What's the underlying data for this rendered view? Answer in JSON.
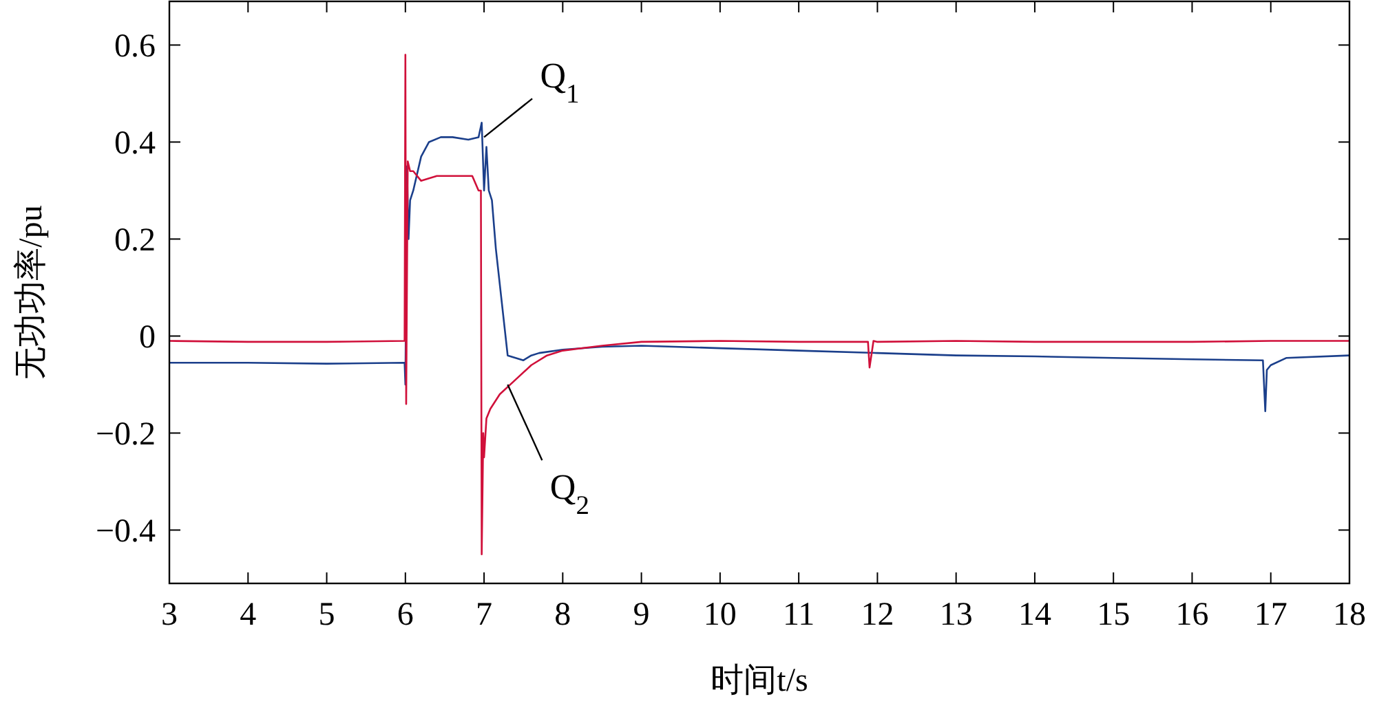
{
  "chart_data": {
    "type": "line",
    "xlabel": "时间t/s",
    "ylabel": "无功功率/pu",
    "xlim": [
      3,
      18
    ],
    "ylim": [
      -0.51,
      0.69
    ],
    "xticks": [
      3,
      4,
      5,
      6,
      7,
      8,
      9,
      10,
      11,
      12,
      13,
      14,
      15,
      16,
      17,
      18
    ],
    "yticks": [
      {
        "value": -0.4,
        "label": "−0.4"
      },
      {
        "value": -0.2,
        "label": "−0.2"
      },
      0,
      0.2,
      0.4,
      0.6
    ],
    "grid": false,
    "marker": "none",
    "line_style": "solid",
    "annotations": [
      {
        "text": "Q$_{1}$",
        "x": 7.0,
        "y": 0.41
      },
      {
        "text": "Q$_{2}$",
        "x": 7.3,
        "y": -0.1
      }
    ],
    "series": [
      {
        "color": "#1b3f8b",
        "x": [
          3,
          4,
          5,
          5.99,
          6.0,
          6.02,
          6.04,
          6.06,
          6.1,
          6.2,
          6.3,
          6.45,
          6.6,
          6.8,
          6.93,
          6.97,
          7.0,
          7.03,
          7.06,
          7.1,
          7.15,
          7.3,
          7.4,
          7.5,
          7.6,
          7.7,
          8,
          8.5,
          9,
          10,
          11,
          12,
          13,
          14,
          15,
          16,
          16.9,
          16.93,
          16.95,
          17.0,
          17.2,
          18
        ],
        "values": [
          -0.055,
          -0.055,
          -0.057,
          -0.055,
          -0.1,
          0.35,
          0.2,
          0.28,
          0.3,
          0.37,
          0.4,
          0.41,
          0.41,
          0.405,
          0.41,
          0.44,
          0.3,
          0.39,
          0.3,
          0.28,
          0.18,
          -0.04,
          -0.045,
          -0.05,
          -0.04,
          -0.035,
          -0.028,
          -0.022,
          -0.02,
          -0.025,
          -0.03,
          -0.035,
          -0.04,
          -0.042,
          -0.045,
          -0.048,
          -0.05,
          -0.155,
          -0.07,
          -0.06,
          -0.045,
          -0.04
        ]
      },
      {
        "color": "#d0103a",
        "x": [
          3,
          4,
          5,
          5.99,
          6.0,
          6.01,
          6.03,
          6.06,
          6.1,
          6.2,
          6.4,
          6.6,
          6.85,
          6.93,
          6.96,
          6.97,
          6.99,
          7.0,
          7.03,
          7.08,
          7.2,
          7.4,
          7.6,
          7.8,
          8,
          8.5,
          9,
          10,
          11,
          11.88,
          11.9,
          11.95,
          12,
          13,
          14,
          15,
          16,
          17,
          18
        ],
        "values": [
          -0.01,
          -0.012,
          -0.012,
          -0.01,
          0.58,
          -0.14,
          0.36,
          0.34,
          0.34,
          0.32,
          0.33,
          0.33,
          0.33,
          0.3,
          0.3,
          -0.45,
          -0.2,
          -0.25,
          -0.17,
          -0.15,
          -0.12,
          -0.09,
          -0.06,
          -0.04,
          -0.03,
          -0.02,
          -0.012,
          -0.01,
          -0.012,
          -0.012,
          -0.065,
          -0.01,
          -0.012,
          -0.01,
          -0.012,
          -0.012,
          -0.012,
          -0.01,
          -0.01
        ]
      }
    ]
  }
}
